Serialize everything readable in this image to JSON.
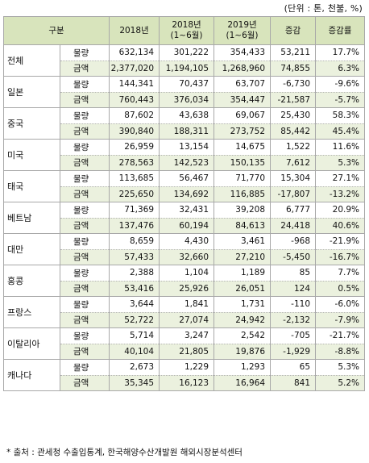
{
  "unit_note": "(단위 : 톤, 천불, %)",
  "headers": {
    "category": "구분",
    "y2018": "2018년",
    "h2018_line1": "2018년",
    "h2018_line2": "(1~6월)",
    "h2019_line1": "2019년",
    "h2019_line2": "(1~6월)",
    "diff": "증감",
    "rate": "증감률"
  },
  "kind_labels": {
    "qty": "물량",
    "amt": "금액"
  },
  "rows": [
    {
      "country": "전체",
      "qty": [
        "632,134",
        "301,222",
        "354,433",
        "53,211",
        "17.7%"
      ],
      "amt": [
        "2,377,020",
        "1,194,105",
        "1,268,960",
        "74,855",
        "6.3%"
      ]
    },
    {
      "country": "일본",
      "qty": [
        "144,341",
        "70,437",
        "63,707",
        "-6,730",
        "-9.6%"
      ],
      "amt": [
        "760,443",
        "376,034",
        "354,447",
        "-21,587",
        "-5.7%"
      ]
    },
    {
      "country": "중국",
      "qty": [
        "87,602",
        "43,638",
        "69,067",
        "25,430",
        "58.3%"
      ],
      "amt": [
        "390,840",
        "188,311",
        "273,752",
        "85,442",
        "45.4%"
      ]
    },
    {
      "country": "미국",
      "qty": [
        "26,959",
        "13,154",
        "14,675",
        "1,522",
        "11.6%"
      ],
      "amt": [
        "278,563",
        "142,523",
        "150,135",
        "7,612",
        "5.3%"
      ]
    },
    {
      "country": "태국",
      "qty": [
        "113,685",
        "56,467",
        "71,770",
        "15,304",
        "27.1%"
      ],
      "amt": [
        "225,650",
        "134,692",
        "116,885",
        "-17,807",
        "-13.2%"
      ]
    },
    {
      "country": "베트남",
      "qty": [
        "71,369",
        "32,431",
        "39,208",
        "6,777",
        "20.9%"
      ],
      "amt": [
        "137,476",
        "60,194",
        "84,613",
        "24,418",
        "40.6%"
      ]
    },
    {
      "country": "대만",
      "qty": [
        "8,659",
        "4,430",
        "3,461",
        "-968",
        "-21.9%"
      ],
      "amt": [
        "57,433",
        "32,660",
        "27,210",
        "-5,450",
        "-16.7%"
      ]
    },
    {
      "country": "홍콩",
      "qty": [
        "2,388",
        "1,104",
        "1,189",
        "85",
        "7.7%"
      ],
      "amt": [
        "53,416",
        "25,926",
        "26,051",
        "124",
        "0.5%"
      ]
    },
    {
      "country": "프랑스",
      "qty": [
        "3,644",
        "1,841",
        "1,731",
        "-110",
        "-6.0%"
      ],
      "amt": [
        "52,722",
        "27,074",
        "24,942",
        "-2,132",
        "-7.9%"
      ]
    },
    {
      "country": "이탈리아",
      "qty": [
        "5,714",
        "3,247",
        "2,542",
        "-705",
        "-21.7%"
      ],
      "amt": [
        "40,104",
        "21,805",
        "19,876",
        "-1,929",
        "-8.8%"
      ]
    },
    {
      "country": "캐나다",
      "qty": [
        "2,673",
        "1,229",
        "1,293",
        "65",
        "5.3%"
      ],
      "amt": [
        "35,345",
        "16,123",
        "16,964",
        "841",
        "5.2%"
      ]
    }
  ],
  "footnote": "* 출처 : 관세청 수출입통계, 한국해양수산개발원 해외시장분석센터"
}
